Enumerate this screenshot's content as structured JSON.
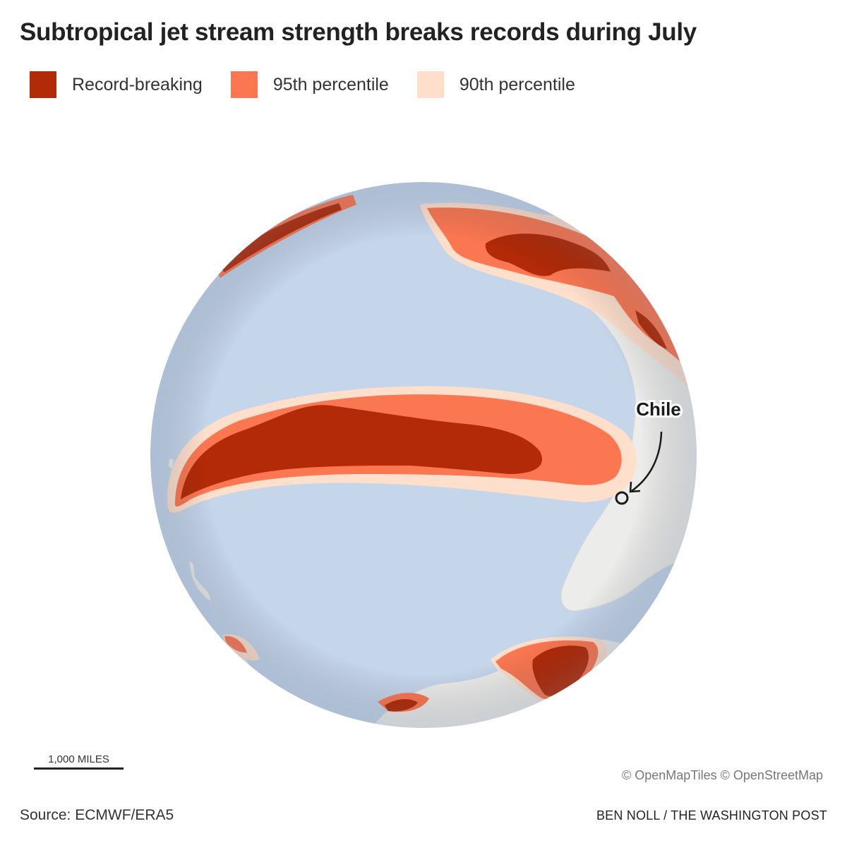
{
  "title": "Subtropical jet stream strength breaks records during July",
  "legend": [
    {
      "label": "Record-breaking",
      "color": "#b22a07"
    },
    {
      "label": "95th percentile",
      "color": "#fb7752"
    },
    {
      "label": "90th percentile",
      "color": "#fedfcc"
    }
  ],
  "colors": {
    "ocean": "#c5d5ea",
    "land": "#ececea",
    "record": "#b22a07",
    "p95": "#fb7752",
    "p90": "#fedfcc"
  },
  "annotation": {
    "label": "Chile"
  },
  "scale_bar": {
    "label": "1,000 MILES"
  },
  "attribution": "© OpenMapTiles © OpenStreetMap",
  "source": "Source: ECMWF/ERA5",
  "credit": "BEN NOLL / THE WASHINGTON POST"
}
